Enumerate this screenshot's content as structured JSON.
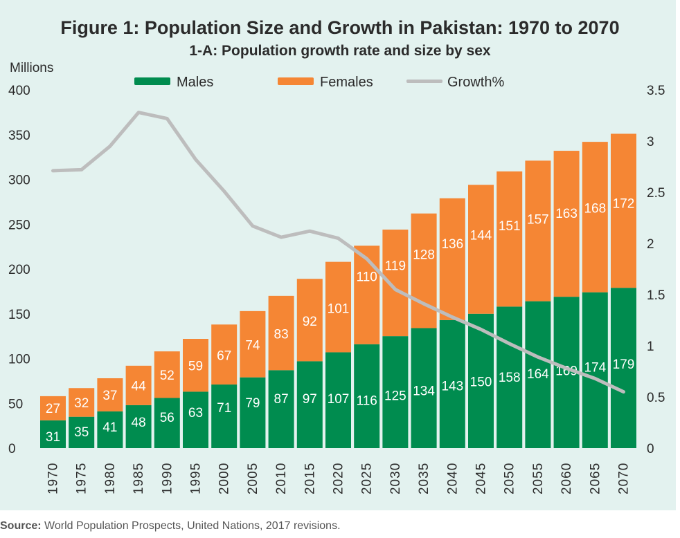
{
  "chart_data": {
    "type": "bar",
    "stacked": true,
    "title": "Figure 1: Population Size and Growth in Pakistan: 1970 to 2070",
    "subtitle": "1-A: Population growth rate and size by sex",
    "ylabel": "Millions",
    "ylim": [
      0,
      400
    ],
    "yticks": [
      0,
      50,
      100,
      150,
      200,
      250,
      300,
      350,
      400
    ],
    "y2lim": [
      0,
      3.5
    ],
    "y2ticks": [
      "0",
      "0.5",
      "1",
      "1.5",
      "2",
      "2.5",
      "3",
      "3.5"
    ],
    "grid": false,
    "legend_position": "top-center",
    "categories": [
      "1970",
      "1975",
      "1980",
      "1985",
      "1990",
      "1995",
      "2000",
      "2005",
      "2010",
      "2015",
      "2020",
      "2025",
      "2030",
      "2035",
      "2040",
      "2045",
      "2050",
      "2055",
      "2060",
      "2065",
      "2070"
    ],
    "series": [
      {
        "name": "Males",
        "type": "bar",
        "axis": "left",
        "color": "#008c4f",
        "values": [
          31,
          35,
          41,
          48,
          56,
          63,
          71,
          79,
          87,
          97,
          107,
          116,
          125,
          134,
          143,
          150,
          158,
          164,
          169,
          174,
          179
        ]
      },
      {
        "name": "Females",
        "type": "bar",
        "axis": "left",
        "color": "#f58634",
        "values": [
          27,
          32,
          37,
          44,
          52,
          59,
          67,
          74,
          83,
          92,
          101,
          110,
          119,
          128,
          136,
          144,
          151,
          157,
          163,
          168,
          172
        ]
      },
      {
        "name": "Growth%",
        "type": "line",
        "axis": "right",
        "color": "#bdbdbd",
        "values": [
          2.71,
          2.72,
          2.95,
          3.28,
          3.22,
          2.82,
          2.51,
          2.17,
          2.06,
          2.12,
          2.05,
          1.85,
          1.55,
          1.41,
          1.28,
          1.16,
          1.02,
          0.89,
          0.78,
          0.68,
          0.55
        ]
      }
    ]
  },
  "source": {
    "label": "Source:",
    "text": "World Population Prospects, United Nations, 2017 revisions."
  }
}
